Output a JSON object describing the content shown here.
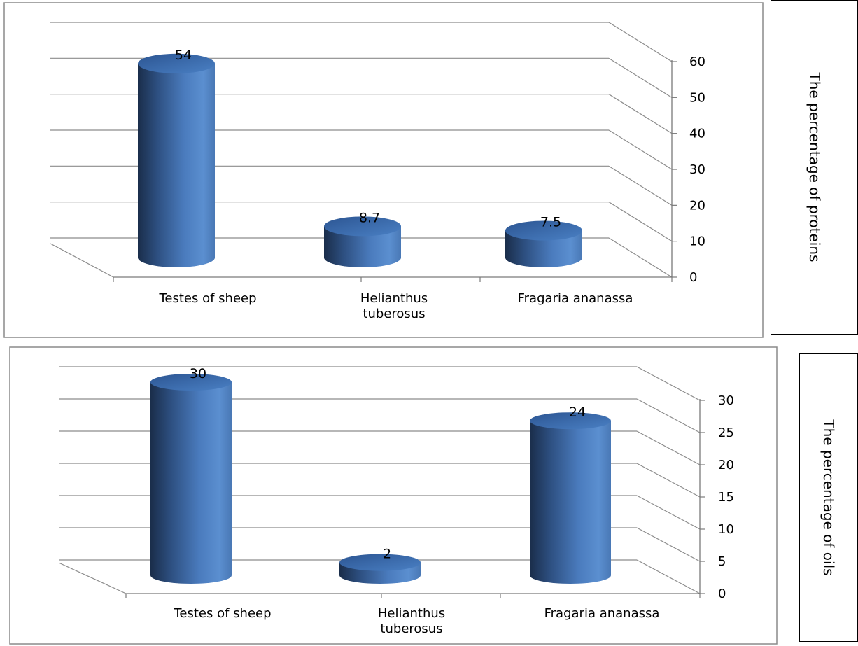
{
  "chart_data": [
    {
      "type": "bar",
      "style": "3d-cylinder",
      "categories": [
        "Testes of sheep",
        "Helianthus\ntuberosus",
        "Fragaria ananassa"
      ],
      "values": [
        54,
        8.7,
        7.5
      ],
      "data_labels": [
        "54",
        "8.7",
        "7.5"
      ],
      "ylabel": "The percentage of proteins",
      "ylim": [
        0,
        60
      ],
      "yticks": [
        "0",
        "10",
        "20",
        "30",
        "40",
        "50",
        "60"
      ],
      "grid": true,
      "axis_position": "right",
      "color": "#4f81bd"
    },
    {
      "type": "bar",
      "style": "3d-cylinder",
      "categories": [
        "Testes of sheep",
        "Helianthus\ntuberosus",
        "Fragaria ananassa"
      ],
      "values": [
        30,
        2,
        24
      ],
      "data_labels": [
        "30",
        "2",
        "24"
      ],
      "ylabel": "The percentage of oils",
      "ylim": [
        0,
        30
      ],
      "yticks": [
        "0",
        "5",
        "10",
        "15",
        "20",
        "25",
        "30"
      ],
      "grid": true,
      "axis_position": "right",
      "color": "#4f81bd"
    }
  ]
}
